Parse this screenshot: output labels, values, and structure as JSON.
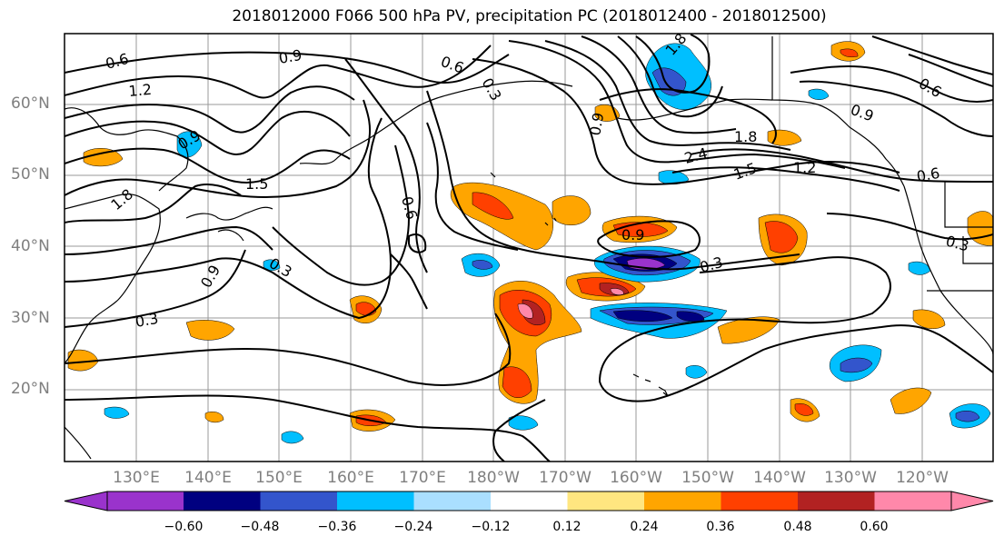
{
  "title": "2018012000 F066 500 hPa PV, precipitation PC (2018012400 - 2018012500)",
  "lat_labels": [
    "60°N",
    "50°N",
    "40°N",
    "30°N",
    "20°N"
  ],
  "lon_labels": [
    "130°E",
    "140°E",
    "150°E",
    "160°E",
    "170°E",
    "180°W",
    "170°W",
    "160°W",
    "150°W",
    "140°W",
    "130°W",
    "120°W"
  ],
  "contour_labels": [
    "0.6",
    "0.9",
    "1.2",
    "1.5",
    "1.8",
    "0.6",
    "0.3",
    "0.9",
    "0.3",
    "0.9",
    "2.4",
    "1.8",
    "1.5",
    "1.2",
    "0.6",
    "0.9",
    "0.6",
    "0.3",
    "0.9",
    "0.3",
    "0.6",
    "0.3",
    "1.8",
    "0.9"
  ],
  "colorbar": {
    "tick_labels": [
      "−0.60",
      "−0.48",
      "−0.36",
      "−0.24",
      "−0.12",
      "0.12",
      "0.24",
      "0.36",
      "0.48",
      "0.60"
    ],
    "colors": [
      "#9a33cc",
      "#000080",
      "#3355cc",
      "#00bfff",
      "#aadfff",
      "#ffffff",
      "#ffe680",
      "#ffa500",
      "#ff4000",
      "#b22222",
      "#ff88aa"
    ]
  },
  "map_colors": {
    "contour": "#000000",
    "coast": "#000000",
    "grid": "#999999",
    "axis_label": "#7f7f7f"
  }
}
